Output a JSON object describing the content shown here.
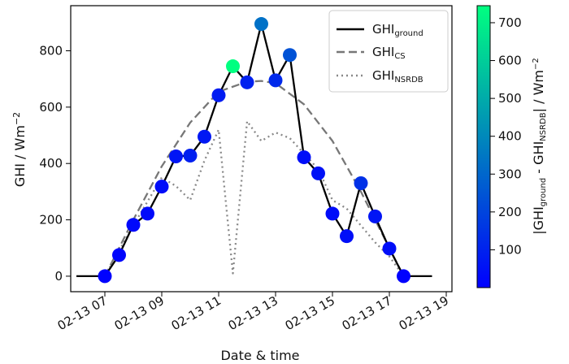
{
  "chart_data": {
    "type": "line",
    "xlabel": "Date & time",
    "ylabel": "GHI / Wm",
    "ylabel_sup": "−2",
    "x_ticks": [
      "02-13 07",
      "02-13 09",
      "02-13 11",
      "02-13 13",
      "02-13 15",
      "02-13 17",
      "02-13 19"
    ],
    "x_tick_hours": [
      7,
      9,
      11,
      13,
      15,
      17,
      19
    ],
    "xlim_hours": [
      5.8,
      19.2
    ],
    "y_ticks": [
      "0",
      "200",
      "400",
      "600",
      "800"
    ],
    "y_tick_values": [
      0,
      200,
      400,
      600,
      800
    ],
    "ylim": [
      -55,
      960
    ],
    "colorbar": {
      "label_pre": "|GHI",
      "label_sub1": "ground",
      "label_mid": " - GHI",
      "label_sub2": "NSRDB",
      "label_post": "| / Wm",
      "label_sup": "−2",
      "ticks": [
        "100",
        "200",
        "300",
        "400",
        "500",
        "600",
        "700"
      ],
      "tick_values": [
        100,
        200,
        300,
        400,
        500,
        600,
        700
      ],
      "range": [
        0,
        745
      ],
      "colormap": [
        "#0000ff",
        "#00ff80"
      ]
    },
    "legend": {
      "position": "top-right",
      "entries": [
        {
          "prefix": "GHI",
          "sub": "ground"
        },
        {
          "prefix": "GHI",
          "sub": "CS"
        },
        {
          "prefix": "GHI",
          "sub": "NSRDB"
        }
      ]
    },
    "series": [
      {
        "name": "GHI_ground",
        "style": "solid",
        "color": "#000000",
        "x": [
          6,
          7,
          7.5,
          8,
          8.5,
          9,
          9.5,
          10,
          10.5,
          11,
          11.5,
          12,
          12.5,
          13,
          13.5,
          14,
          14.5,
          15,
          15.5,
          16,
          16.5,
          17,
          17.5,
          18.5
        ],
        "y": [
          0,
          0,
          75,
          182,
          222,
          318,
          425,
          428,
          495,
          642,
          745,
          688,
          895,
          695,
          785,
          422,
          365,
          222,
          142,
          330,
          212,
          98,
          0,
          0
        ]
      },
      {
        "name": "GHI_CS",
        "style": "dashed",
        "color": "#777777",
        "x": [
          7,
          8,
          9,
          10,
          11,
          12,
          12.5,
          13,
          14,
          15,
          16,
          17,
          17.5
        ],
        "y": [
          0,
          200,
          390,
          545,
          655,
          690,
          693,
          685,
          610,
          480,
          300,
          100,
          0
        ]
      },
      {
        "name": "GHI_NSRDB",
        "style": "dotted",
        "color": "#888888",
        "x": [
          7,
          8,
          9,
          9.5,
          10,
          10.5,
          11,
          11.5,
          12,
          12.5,
          13,
          13.5,
          14,
          14.5,
          15,
          15.5,
          16,
          16.5,
          17,
          17.5
        ],
        "y": [
          0,
          180,
          350,
          320,
          270,
          410,
          520,
          10,
          550,
          480,
          510,
          490,
          435,
          380,
          270,
          240,
          180,
          120,
          70,
          0
        ]
      }
    ],
    "points": {
      "x": [
        7,
        7.5,
        8,
        8.5,
        9,
        9.5,
        10,
        10.5,
        11,
        11.5,
        12,
        12.5,
        13,
        13.5,
        14,
        14.5,
        15,
        15.5,
        16,
        16.5,
        17,
        17.5
      ],
      "y": [
        0,
        75,
        182,
        222,
        318,
        425,
        428,
        495,
        642,
        745,
        688,
        895,
        695,
        785,
        422,
        365,
        222,
        142,
        330,
        212,
        98,
        0
      ],
      "diff": [
        5,
        15,
        25,
        30,
        35,
        60,
        90,
        70,
        80,
        745,
        95,
        330,
        120,
        240,
        40,
        50,
        35,
        40,
        140,
        60,
        40,
        5
      ]
    }
  }
}
